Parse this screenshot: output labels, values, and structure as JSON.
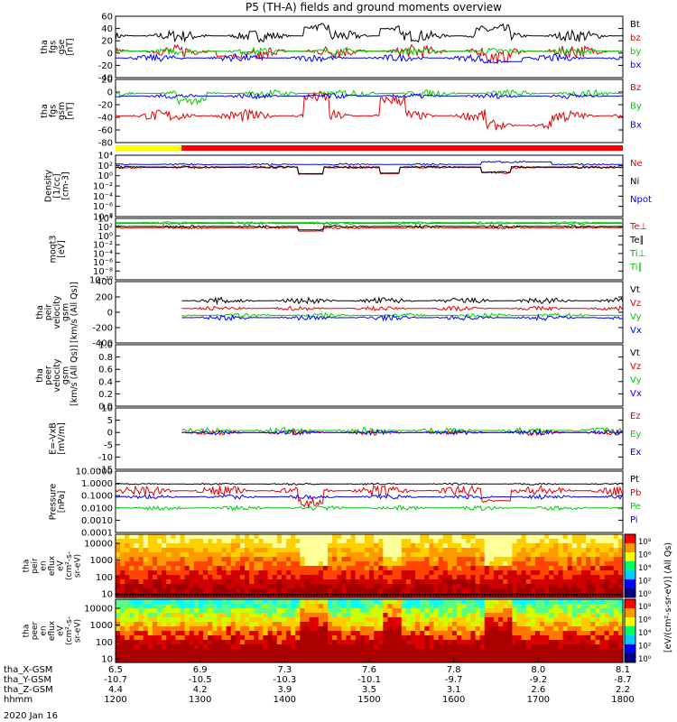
{
  "chart_data": {
    "type": "line",
    "title": "P5 (TH-A) fields and ground moments overview",
    "date_label": "2020 Jan 16",
    "x_labels": [
      {
        "name": "tha_X-GSM",
        "values": [
          "6.5",
          "6.9",
          "7.3",
          "7.6",
          "7.8",
          "8.0",
          "8.1"
        ]
      },
      {
        "name": "tha_Y-GSM",
        "values": [
          "-10.7",
          "-10.5",
          "-10.3",
          "-10.1",
          "-9.7",
          "-9.2",
          "-8.7"
        ]
      },
      {
        "name": "tha_Z-GSM",
        "values": [
          "4.4",
          "4.2",
          "3.9",
          "3.5",
          "3.1",
          "2.6",
          "2.2"
        ]
      },
      {
        "name": "hhmm",
        "values": [
          "1200",
          "1300",
          "1400",
          "1500",
          "1600",
          "1700",
          "1800"
        ]
      }
    ],
    "panels": [
      {
        "key": "fgs",
        "ylabel": [
          "tha",
          "fgs",
          "gse",
          "[nT]"
        ],
        "ticks": [
          "60",
          "40",
          "20",
          "0",
          "-20",
          "-40"
        ],
        "ylim": [
          -40,
          60
        ],
        "series": [
          {
            "name": "Bt",
            "color": "#000000",
            "base": 28,
            "noise": 10,
            "drops": [
              [
                0.37,
                0.42,
                14
              ],
              [
                0.52,
                0.56,
                12
              ],
              [
                0.71,
                0.78,
                10
              ]
            ]
          },
          {
            "name": "bz",
            "color": "#e00000",
            "base": 3,
            "noise": 11,
            "drops": [
              [
                0.2,
                0.3,
                -8
              ],
              [
                0.73,
                0.78,
                -10
              ]
            ]
          },
          {
            "name": "by",
            "color": "#00cc00",
            "base": 3,
            "noise": 6,
            "drops": []
          },
          {
            "name": "bx",
            "color": "#0000ff",
            "base": -8,
            "noise": 6,
            "drops": [
              [
                0.72,
                0.8,
                -6
              ]
            ]
          }
        ]
      },
      {
        "key": "fgs_gsm",
        "ylabel": [
          "tha",
          "fgs",
          "gsm",
          "[nT]"
        ],
        "ticks": [
          "20",
          "0",
          "-20",
          "-40",
          "-60",
          "-80"
        ],
        "ylim": [
          -90,
          28
        ],
        "series": [
          {
            "name": "Bz",
            "color": "#e00000",
            "base": -40,
            "noise": 12,
            "drops": [
              [
                0.37,
                0.42,
                35
              ],
              [
                0.52,
                0.57,
                30
              ],
              [
                0.73,
                0.86,
                -18
              ]
            ]
          },
          {
            "name": "By",
            "color": "#00cc00",
            "base": 2,
            "noise": 7,
            "drops": [
              [
                0.12,
                0.18,
                -14
              ]
            ]
          },
          {
            "name": "Bx",
            "color": "#0000ff",
            "base": -3,
            "noise": 5,
            "drops": []
          }
        ]
      },
      {
        "key": "density",
        "ylabel": [
          "Density",
          "[1/cc]",
          "[cm-3]"
        ],
        "log": true,
        "ticks": [
          "10⁴",
          "10²",
          "10⁰",
          "10⁻²",
          "10⁻⁴",
          "10⁻⁶",
          "10⁻⁸"
        ],
        "ylim": [
          -8,
          4
        ],
        "series": [
          {
            "name": "Ne",
            "color": "#e00000",
            "base": 1.6,
            "noise": 0.25,
            "drops": [
              [
                0.36,
                0.41,
                -1.3
              ],
              [
                0.52,
                0.56,
                -1.2
              ],
              [
                0.72,
                0.78,
                -1.0
              ]
            ]
          },
          {
            "name": "Ni",
            "color": "#000000",
            "base": 1.7,
            "noise": 0.25,
            "drops": [
              [
                0.36,
                0.41,
                -1.3
              ],
              [
                0.52,
                0.56,
                -1.2
              ],
              [
                0.72,
                0.78,
                -1.0
              ]
            ]
          },
          {
            "name": "Npot",
            "color": "#0000ff",
            "base": 2.2,
            "noise": 0.2,
            "drops": [
              [
                0.72,
                0.86,
                0.5
              ]
            ]
          }
        ]
      },
      {
        "key": "temps",
        "ylabel": [
          "moqt3",
          "[eV]"
        ],
        "log": true,
        "ticks": [
          "10⁴",
          "10²",
          "10⁰",
          "10⁻²",
          "10⁻⁴",
          "10⁻⁶",
          "10⁻⁸",
          "10⁻¹⁰"
        ],
        "ylim": [
          -10,
          4.5
        ],
        "series": [
          {
            "name": "Te⊥",
            "color": "#e00000",
            "base": 2.3,
            "noise": 0.3,
            "drops": [
              [
                0.36,
                0.41,
                -0.8
              ]
            ]
          },
          {
            "name": "Te∥",
            "color": "#000000",
            "base": 2.6,
            "noise": 0.3,
            "drops": [
              [
                0.36,
                0.41,
                -0.8
              ]
            ]
          },
          {
            "name": "Ti⊥",
            "color": "#00aa00",
            "base": 3.3,
            "noise": 0.25,
            "drops": []
          },
          {
            "name": "Ti∥",
            "color": "#00cc00",
            "base": 3.5,
            "noise": 0.25,
            "drops": []
          }
        ]
      },
      {
        "key": "peir_vel",
        "ylabel": [
          "tha",
          "peir",
          "velocity",
          "gsm",
          "[km/s (All Qs)]"
        ],
        "ticks": [
          "400",
          "200",
          "0",
          "-200",
          "-400"
        ],
        "ylim": [
          -400,
          400
        ],
        "start": 0.13,
        "series": [
          {
            "name": "Vt",
            "color": "#000000",
            "base": 150,
            "noise": 45,
            "drops": []
          },
          {
            "name": "Vz",
            "color": "#e00000",
            "base": 50,
            "noise": 30,
            "drops": []
          },
          {
            "name": "Vy",
            "color": "#00cc00",
            "base": -40,
            "noise": 30,
            "drops": []
          },
          {
            "name": "Vx",
            "color": "#0000ff",
            "base": -70,
            "noise": 35,
            "drops": []
          }
        ]
      },
      {
        "key": "peer_vel",
        "ylabel": [
          "tha",
          "peer",
          "velocity",
          "gsm",
          "[km/s (All Qs)]"
        ],
        "ticks": [
          "1.0",
          "0.8",
          "0.6",
          "0.4",
          "0.2",
          "0.0"
        ],
        "ylim": [
          0,
          1
        ],
        "series": [
          {
            "name": "Vt",
            "color": "#000000",
            "empty": true
          },
          {
            "name": "Vz",
            "color": "#e00000",
            "empty": true
          },
          {
            "name": "Vy",
            "color": "#00cc00",
            "empty": true
          },
          {
            "name": "Vx",
            "color": "#0000ff",
            "empty": true
          }
        ]
      },
      {
        "key": "efield",
        "ylabel": [
          "E=-VxB",
          "[mV/m]"
        ],
        "ticks": [
          "10",
          "5",
          "0",
          "-5",
          "-10",
          "-15"
        ],
        "ylim": [
          -15,
          10
        ],
        "start": 0.13,
        "series": [
          {
            "name": "Ez",
            "color": "#e00000",
            "base": 0,
            "noise": 1.2,
            "drops": []
          },
          {
            "name": "Ey",
            "color": "#00cc00",
            "base": 0.8,
            "noise": 1.3,
            "drops": []
          },
          {
            "name": "Ex",
            "color": "#0000ff",
            "base": 0,
            "noise": 1.0,
            "drops": []
          }
        ]
      },
      {
        "key": "pressure",
        "ylabel": [
          "Pressure",
          "[nPa]"
        ],
        "log": true,
        "ticks": [
          "10.0000",
          "1.0000",
          "0.1000",
          "0.0100",
          "0.0010",
          "0.0001"
        ],
        "ylim": [
          -4,
          1
        ],
        "series": [
          {
            "name": "Pt",
            "color": "#000000",
            "base": -0.05,
            "noise": 0.08,
            "drops": []
          },
          {
            "name": "Pb",
            "color": "#e00000",
            "base": -0.6,
            "noise": 0.45,
            "drops": [
              [
                0.36,
                0.41,
                -1.0
              ],
              [
                0.72,
                0.78,
                -0.8
              ]
            ]
          },
          {
            "name": "Pe",
            "color": "#00cc00",
            "base": -2.0,
            "noise": 0.2,
            "drops": []
          },
          {
            "name": "Pi",
            "color": "#0000ff",
            "base": -1.1,
            "noise": 0.2,
            "drops": []
          }
        ]
      }
    ],
    "spectrograms": [
      {
        "key": "peir_eflux",
        "ylabel": [
          "tha",
          "peir",
          "en",
          "eflux",
          "eV",
          "(cm²-s-",
          "sr-eV)"
        ],
        "ticks": [
          "10000",
          "1000",
          "100",
          "10"
        ]
      },
      {
        "key": "peer_eflux",
        "ylabel": [
          "tha",
          "peer",
          "en",
          "eflux",
          "eV",
          "(cm²-s-",
          "sr-eV)"
        ],
        "ticks": [
          "10000",
          "1000",
          "100",
          "10"
        ]
      }
    ],
    "colorbar": {
      "label": "[eV/(cm²-s-sr-eV)] (All Qs)",
      "ticks_top": [
        "10⁸",
        "10⁶",
        "10⁴",
        "10²",
        "10⁰"
      ],
      "ticks_bottom": [
        "10⁸",
        "10⁶",
        "10⁴",
        "10²",
        "10⁰"
      ]
    },
    "colors": {
      "black": "#000000",
      "red": "#e00000",
      "green": "#00cc00",
      "blue": "#0000ff",
      "mode_fast": "#ffff00",
      "mode_slow": "#ff0000"
    },
    "mode_bar": {
      "segments": [
        {
          "to": 0.13,
          "color": "#ffff00"
        },
        {
          "to": 1.0,
          "color": "#ff0000"
        }
      ]
    }
  }
}
